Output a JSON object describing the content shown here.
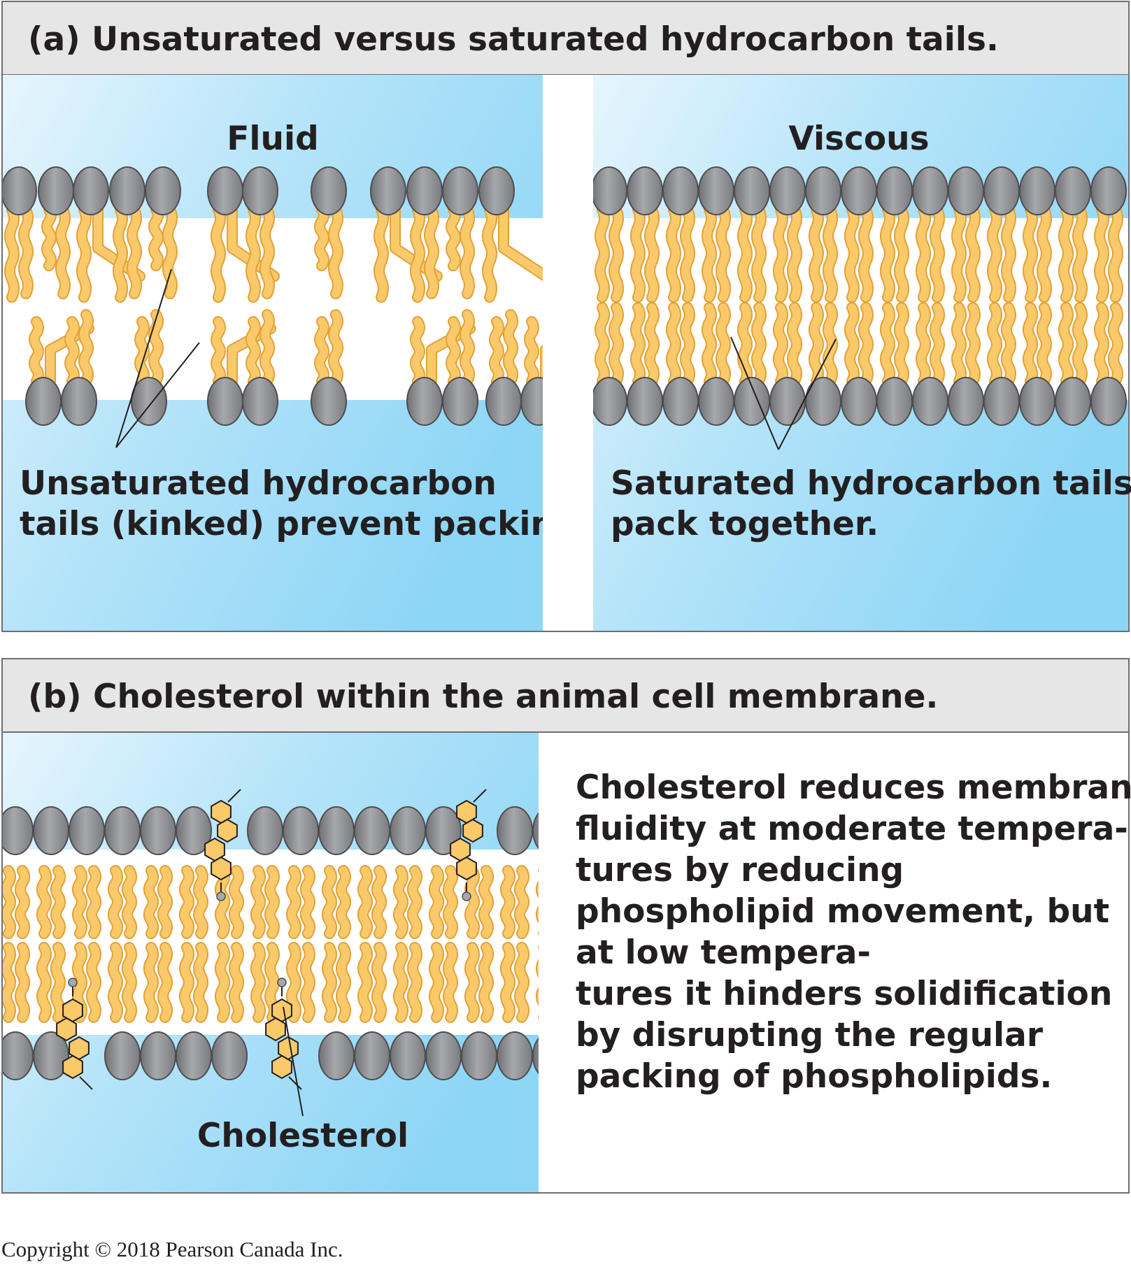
{
  "panel_a": {
    "title": "(a) Unsaturated versus saturated hydrocarbon tails.",
    "left": {
      "heading": "Fluid",
      "caption_lines": [
        "Unsaturated hydrocarbon",
        "tails (kinked) prevent packing."
      ]
    },
    "right": {
      "heading": "Viscous",
      "caption_lines": [
        "Saturated hydrocarbon tails",
        "pack together."
      ]
    }
  },
  "panel_b": {
    "title": "(b) Cholesterol within the animal cell membrane.",
    "label": "Cholesterol",
    "description_lines": [
      "Cholesterol reduces membrane",
      "fluidity at moderate tempera-",
      "tures by reducing",
      "phospholipid movement, but",
      "at low tempera-",
      "tures it hinders solidification",
      "by disrupting the regular",
      "packing of phospholipids."
    ]
  },
  "copyright": "Copyright © 2018 Pearson Canada Inc.",
  "colors": {
    "header_fill": "#e6e6e7",
    "water_light": "#e6f5fd",
    "water_dark": "#8ed6f6",
    "tail": "#f9c96a",
    "tail_outline": "#e2a23a",
    "head": "#9a9b9e",
    "head_outline": "#4d4e50"
  }
}
